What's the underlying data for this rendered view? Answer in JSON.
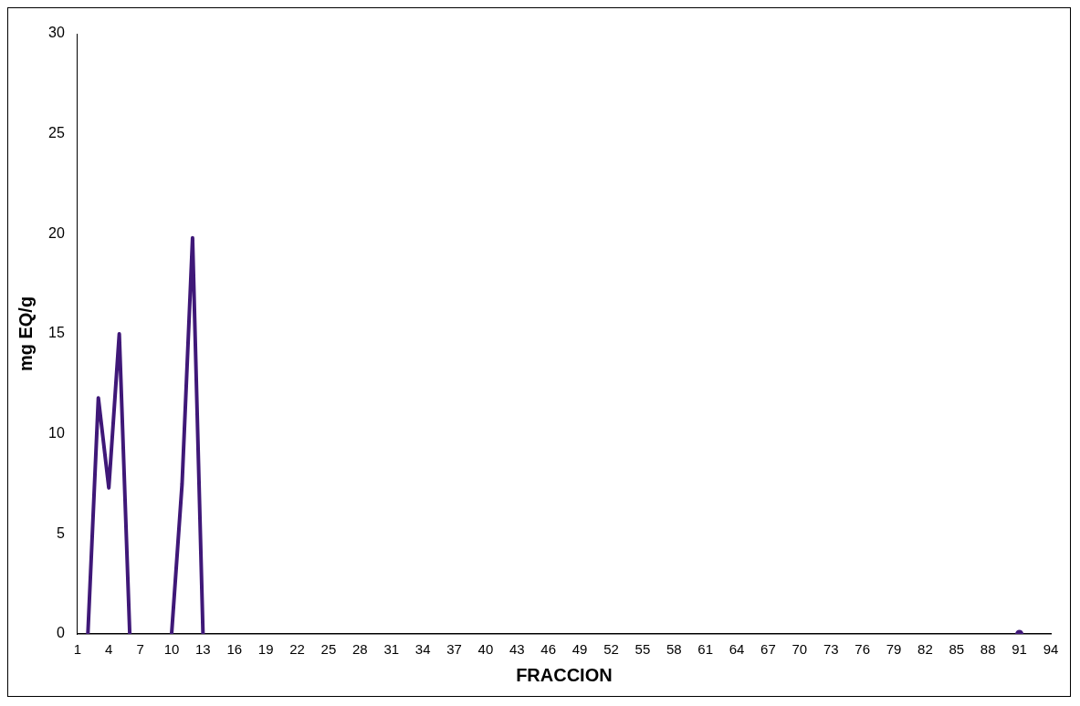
{
  "chart_data": {
    "type": "line",
    "xlabel": "FRACCION",
    "ylabel": "mg EQ/g",
    "categories": [
      "1",
      null,
      null,
      "4",
      null,
      null,
      "7",
      null,
      null,
      "10",
      null,
      null,
      "13",
      null,
      null,
      "16",
      null,
      null,
      "19",
      null,
      null,
      "22",
      null,
      null,
      "25",
      null,
      null,
      "28",
      null,
      null,
      "31",
      null,
      null,
      "34",
      null,
      null,
      "37",
      null,
      null,
      "40",
      null,
      null,
      "43",
      null,
      null,
      "46",
      null,
      null,
      "49",
      null,
      null,
      "52",
      null,
      null,
      "55",
      null,
      null,
      "58",
      null,
      null,
      "61",
      null,
      null,
      "64",
      null,
      null,
      "67",
      null,
      null,
      "70",
      null,
      null,
      "73",
      null,
      null,
      "76",
      null,
      null,
      "79",
      null,
      null,
      "82",
      null,
      null,
      "85",
      null,
      null,
      "88",
      null,
      null,
      "91",
      null,
      null,
      "94"
    ],
    "series": [
      {
        "color": "#3f1878",
        "values": [
          null,
          0,
          11.8,
          7.3,
          15,
          0,
          null,
          null,
          null,
          0,
          7.5,
          19.8,
          0,
          null,
          null,
          null,
          null,
          null,
          null,
          null,
          null,
          null,
          null,
          null,
          null,
          null,
          null,
          null,
          null,
          null,
          null,
          null,
          null,
          null,
          null,
          null,
          null,
          null,
          null,
          null,
          null,
          null,
          null,
          null,
          null,
          null,
          null,
          null,
          null,
          null,
          null,
          null,
          null,
          null,
          null,
          null,
          null,
          null,
          null,
          null,
          null,
          null,
          null,
          null,
          null,
          null,
          null,
          null,
          null,
          null,
          null,
          null,
          null,
          null,
          null,
          null,
          null,
          null,
          null,
          null,
          null,
          null,
          null,
          null,
          null,
          null,
          null,
          null,
          null,
          null,
          0,
          null,
          null,
          null
        ]
      }
    ],
    "ylim": [
      0,
      30
    ],
    "yticks": [
      0,
      5,
      10,
      15,
      20,
      25,
      30
    ],
    "grid": false,
    "legend": false,
    "marker": "none",
    "line_style": "solid"
  }
}
